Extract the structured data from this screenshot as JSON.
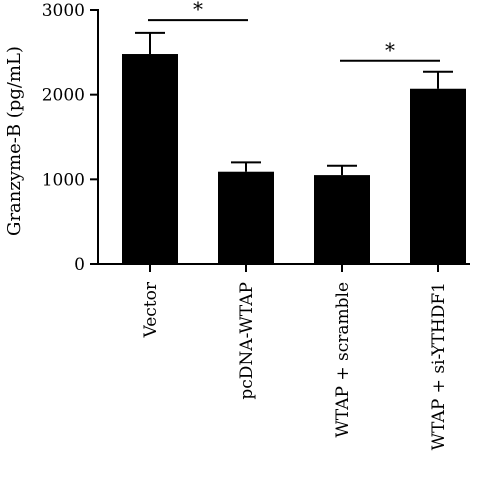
{
  "chart_data": {
    "type": "bar",
    "title": "",
    "xlabel": "",
    "ylabel": "Granzyme-B (pg/mL)",
    "ylim": [
      0,
      3000
    ],
    "yticks": [
      0,
      1000,
      2000,
      3000
    ],
    "categories": [
      "Vector",
      "pcDNA-WTAP",
      "WTAP + scramble",
      "WTAP + si-YTHDF1"
    ],
    "values": [
      2480,
      1090,
      1050,
      2070
    ],
    "errors": [
      250,
      110,
      110,
      200
    ],
    "bar_color": "#000000",
    "grid": false,
    "significance": [
      {
        "from": 0,
        "to": 1,
        "y": 2880,
        "label": "*"
      },
      {
        "from": 2,
        "to": 3,
        "y": 2400,
        "label": "*"
      }
    ]
  }
}
